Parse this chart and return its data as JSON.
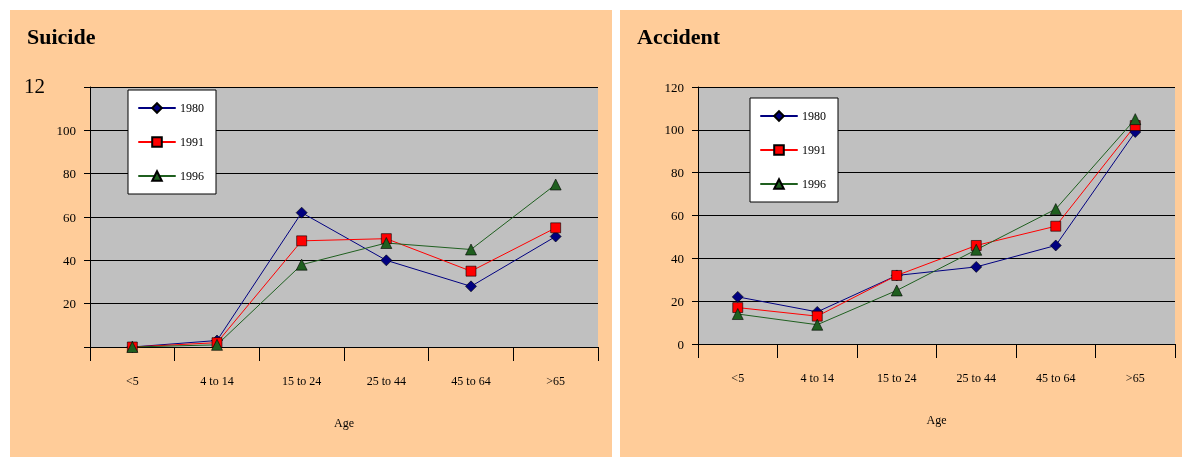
{
  "chart_data": [
    {
      "type": "line",
      "title": "Suicide",
      "xlabel": "Age",
      "categories": [
        "<5",
        "4 to 14",
        "15 to 24",
        "25 to 44",
        "45 to 64",
        ">65"
      ],
      "ylim": [
        0,
        120
      ],
      "yticks": [
        {
          "value": 0,
          "label": null
        },
        20,
        40,
        60,
        80,
        100,
        {
          "value": 120,
          "label": null
        }
      ],
      "annotations": [
        "12"
      ],
      "grid": "y",
      "legend": "top left",
      "line_style": "solid",
      "series": [
        {
          "name": "1980",
          "color": "#000080",
          "marker": "diamond",
          "values": [
            0,
            3,
            62,
            40,
            28,
            51
          ]
        },
        {
          "name": "1991",
          "color": "#ff0000",
          "marker": "square",
          "values": [
            0,
            2,
            49,
            50,
            35,
            55
          ]
        },
        {
          "name": "1996",
          "color": "#1f5f1f",
          "marker": "triangle",
          "values": [
            0,
            1,
            38,
            48,
            45,
            75
          ]
        }
      ]
    },
    {
      "type": "line",
      "title": "Accident",
      "xlabel": "Age",
      "categories": [
        "<5",
        "4 to 14",
        "15 to 24",
        "25 to 44",
        "45 to 64",
        ">65"
      ],
      "ylim": [
        0,
        120
      ],
      "yticks": [
        0,
        20,
        40,
        60,
        80,
        100,
        120
      ],
      "grid": "y",
      "legend": "top left",
      "line_style": "solid",
      "series": [
        {
          "name": "1980",
          "color": "#000080",
          "marker": "diamond",
          "values": [
            22,
            15,
            32,
            36,
            46,
            99
          ]
        },
        {
          "name": "1991",
          "color": "#ff0000",
          "marker": "square",
          "values": [
            17,
            13,
            32,
            46,
            55,
            102
          ]
        },
        {
          "name": "1996",
          "color": "#1f5f1f",
          "marker": "triangle",
          "values": [
            14,
            9,
            25,
            44,
            63,
            105
          ]
        }
      ]
    }
  ]
}
